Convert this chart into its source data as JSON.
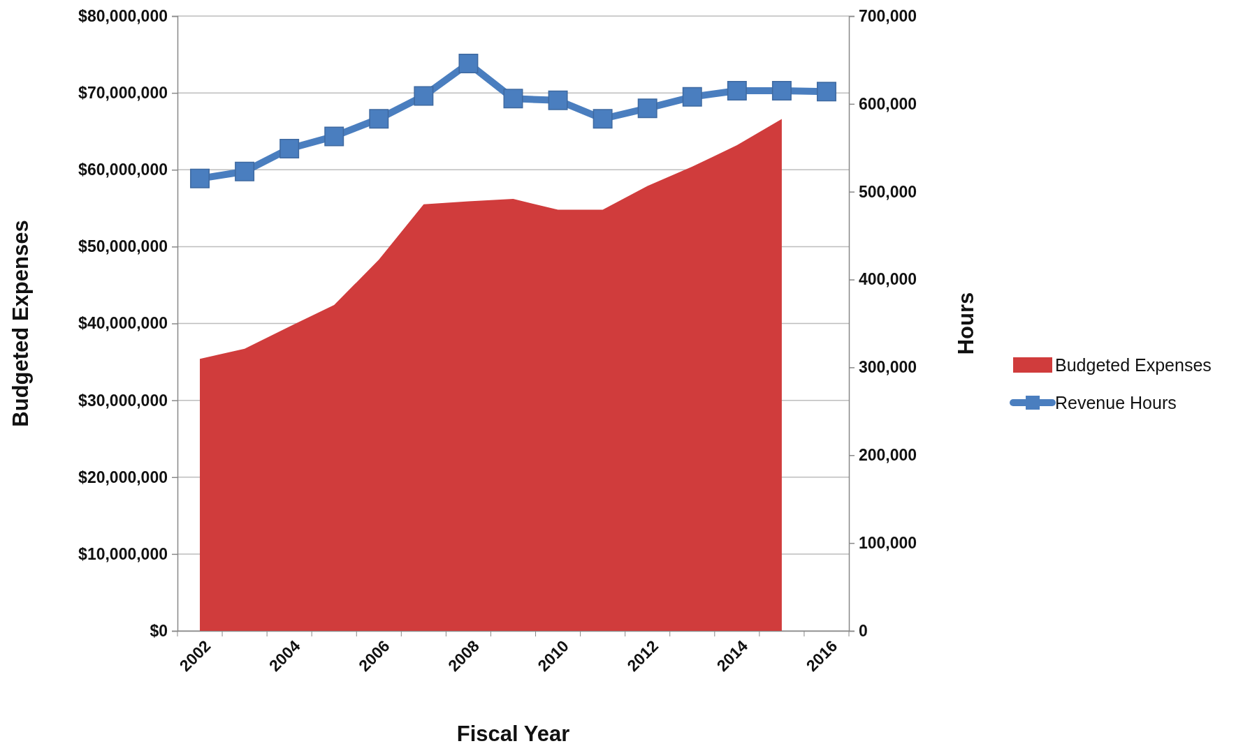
{
  "chart_data": {
    "type": "area",
    "xlabel": "Fiscal Year",
    "ylabel": "Budgeted Expenses",
    "y2label": "Hours",
    "categories": [
      "2002",
      null,
      "2004",
      null,
      "2006",
      null,
      "2008",
      null,
      "2010",
      null,
      "2012",
      null,
      "2014",
      null,
      "2016"
    ],
    "series": [
      {
        "name": "Budgeted Expenses",
        "axis": "y",
        "color": "#d03c3c",
        "values": [
          35400000,
          36700000,
          39600000,
          42400000,
          48300000,
          55500000,
          55900000,
          56200000,
          54800000,
          54800000,
          57900000,
          60400000,
          63200000,
          66600000,
          null
        ]
      },
      {
        "name": "Revenue Hours",
        "type": "line",
        "axis": "y2",
        "color": "#4a7ebf",
        "marker": "square",
        "values": [
          515000,
          523000,
          549000,
          563000,
          583000,
          609000,
          646000,
          606000,
          604000,
          583000,
          595000,
          608000,
          615000,
          615000,
          614000
        ]
      }
    ],
    "ylim": [
      0,
      80000000
    ],
    "yticks": [
      {
        "value": 0,
        "label": "$0"
      },
      {
        "value": 10000000,
        "label": "$10,000,000"
      },
      {
        "value": 20000000,
        "label": "$20,000,000"
      },
      {
        "value": 30000000,
        "label": "$30,000,000"
      },
      {
        "value": 40000000,
        "label": "$40,000,000"
      },
      {
        "value": 50000000,
        "label": "$50,000,000"
      },
      {
        "value": 60000000,
        "label": "$60,000,000"
      },
      {
        "value": 70000000,
        "label": "$70,000,000"
      },
      {
        "value": 80000000,
        "label": "$80,000,000"
      }
    ],
    "y2lim": [
      0,
      700000
    ],
    "y2ticks": [
      0,
      {
        "value": 100000,
        "label": "100,000"
      },
      {
        "value": 200000,
        "label": "200,000"
      },
      {
        "value": 300000,
        "label": "300,000"
      },
      {
        "value": 400000,
        "label": "400,000"
      },
      {
        "value": 500000,
        "label": "500,000"
      },
      {
        "value": 600000,
        "label": "600,000"
      },
      {
        "value": 700000,
        "label": "700,000"
      }
    ],
    "grid": "y",
    "legend": "right"
  }
}
